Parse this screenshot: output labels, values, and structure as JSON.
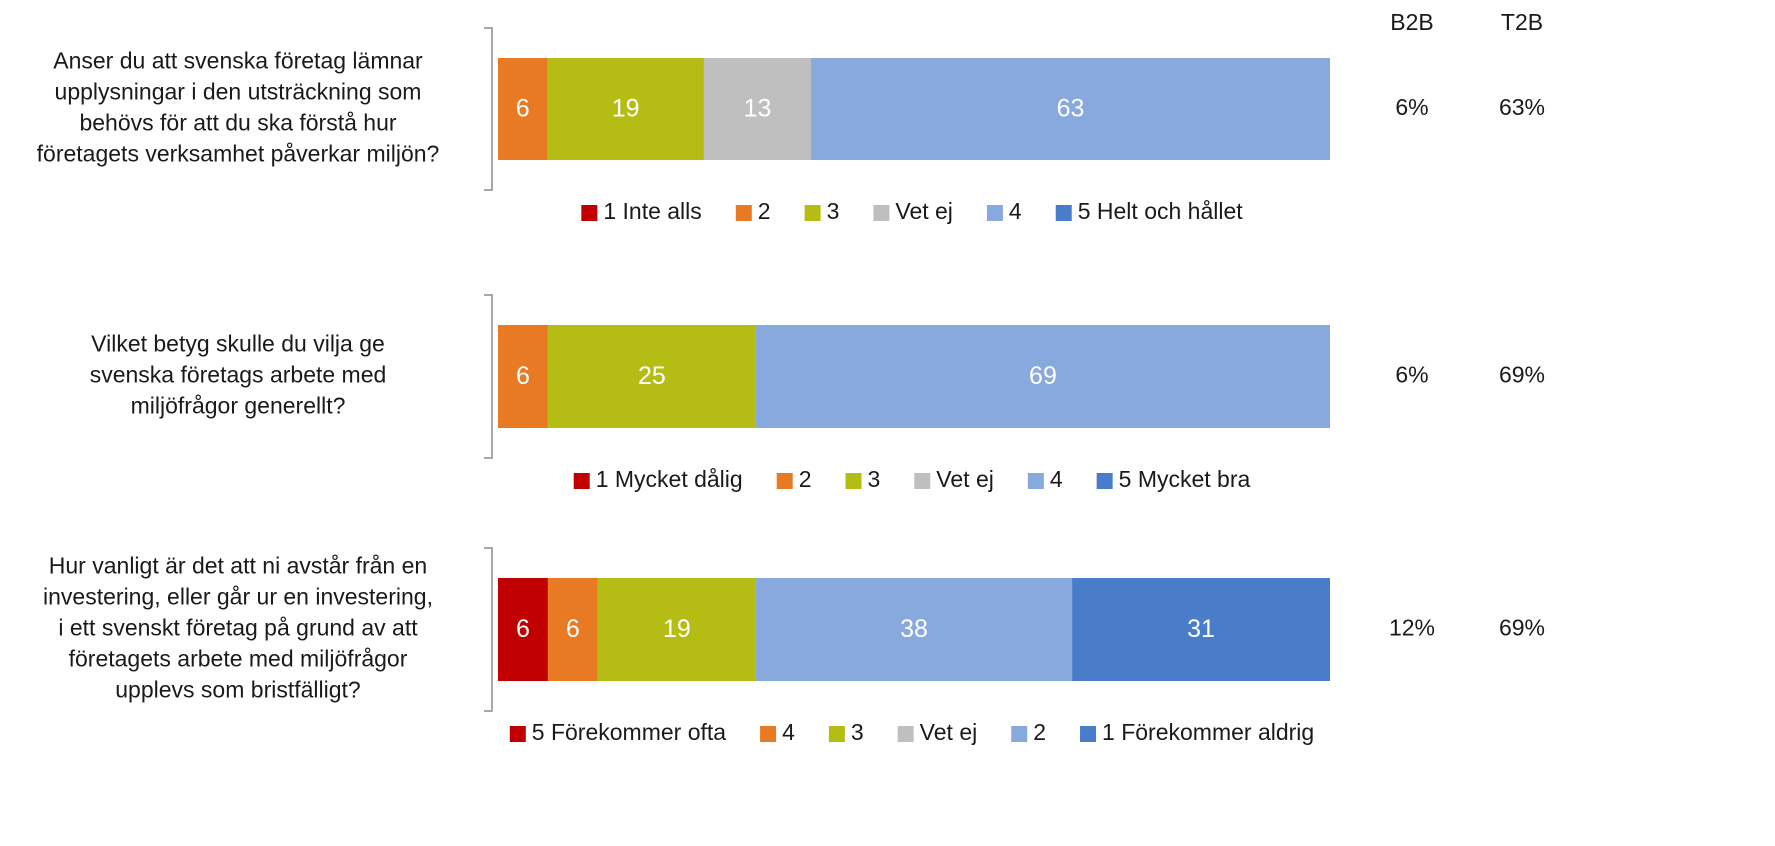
{
  "columns": [
    "B2B",
    "T2B"
  ],
  "chart_data": [
    {
      "type": "bar",
      "orientation": "horizontal",
      "stacked": true,
      "question": [
        "Anser du att svenska företag lämnar",
        "upplysningar i den utsträckning som",
        "behövs för att du ska förstå hur",
        "företagets verksamhet påverkar miljön?"
      ],
      "series": [
        {
          "name": "1 Inte alls",
          "color": "#c00000",
          "values": [
            0
          ]
        },
        {
          "name": "2",
          "color": "#e87a24",
          "values": [
            6
          ]
        },
        {
          "name": "3",
          "color": "#b5bd14",
          "values": [
            19
          ]
        },
        {
          "name": "Vet ej",
          "color": "#bfbfbf",
          "values": [
            13
          ]
        },
        {
          "name": "4",
          "color": "#87a9dd",
          "values": [
            63
          ]
        },
        {
          "name": "5 Helt och hållet",
          "color": "#4a7dc9",
          "values": [
            0
          ]
        }
      ],
      "summary": [
        "6%",
        "63%"
      ]
    },
    {
      "type": "bar",
      "orientation": "horizontal",
      "stacked": true,
      "question": [
        "Vilket betyg skulle du vilja ge",
        "svenska företags arbete med",
        "miljöfrågor generellt?"
      ],
      "series": [
        {
          "name": "1 Mycket dålig",
          "color": "#c00000",
          "values": [
            0
          ]
        },
        {
          "name": "2",
          "color": "#e87a24",
          "values": [
            6
          ]
        },
        {
          "name": "3",
          "color": "#b5bd14",
          "values": [
            25
          ]
        },
        {
          "name": "Vet ej",
          "color": "#bfbfbf",
          "values": [
            0
          ]
        },
        {
          "name": "4",
          "color": "#87a9dd",
          "values": [
            69
          ]
        },
        {
          "name": "5 Mycket bra",
          "color": "#4a7dc9",
          "values": [
            0
          ]
        }
      ],
      "summary": [
        "6%",
        "69%"
      ]
    },
    {
      "type": "bar",
      "orientation": "horizontal",
      "stacked": true,
      "question": [
        "Hur vanligt är det att ni avstår från en",
        "investering, eller går ur en investering,",
        "i ett svenskt företag på grund av att",
        "företagets arbete med miljöfrågor",
        "upplevs som bristfälligt?"
      ],
      "series": [
        {
          "name": "5 Förekommer ofta",
          "color": "#c00000",
          "values": [
            6
          ]
        },
        {
          "name": "4",
          "color": "#e87a24",
          "values": [
            6
          ]
        },
        {
          "name": "3",
          "color": "#b5bd14",
          "values": [
            19
          ]
        },
        {
          "name": "Vet ej",
          "color": "#bfbfbf",
          "values": [
            0
          ]
        },
        {
          "name": "2",
          "color": "#87a9dd",
          "values": [
            38
          ]
        },
        {
          "name": "1 Förekommer aldrig",
          "color": "#4a7dc9",
          "values": [
            31
          ]
        }
      ],
      "summary": [
        "12%",
        "69%"
      ]
    }
  ]
}
